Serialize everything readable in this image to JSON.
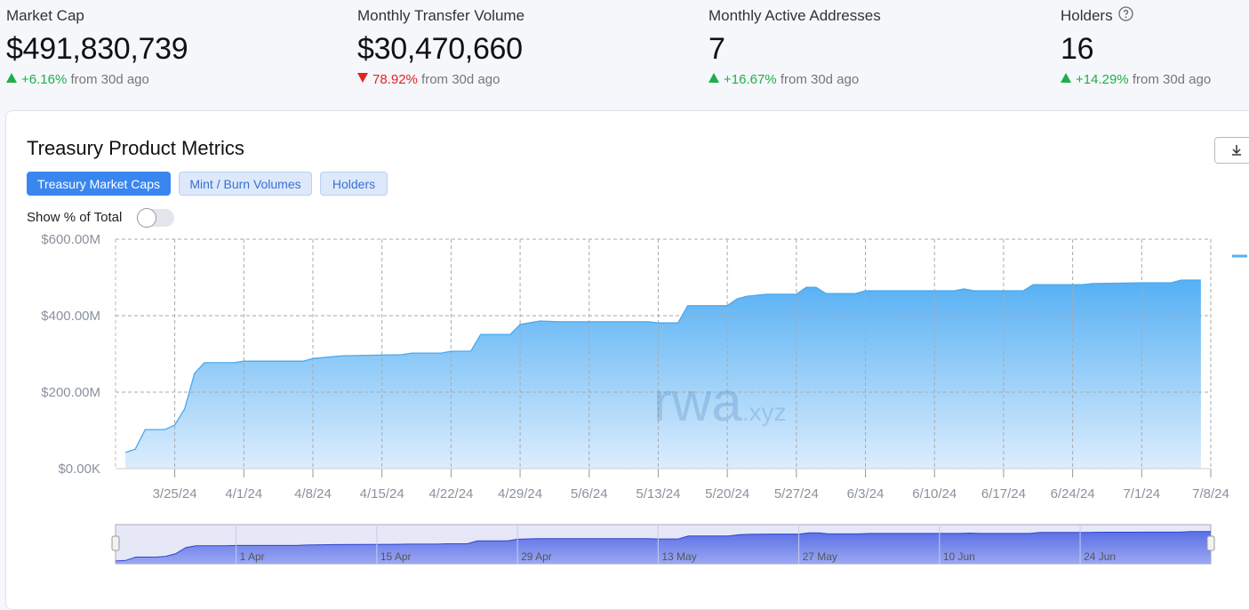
{
  "stats": [
    {
      "label": "Market Cap",
      "value": "$491,830,739",
      "change": "+6.16%",
      "direction": "up",
      "period": "from 30d ago"
    },
    {
      "label": "Monthly Transfer Volume",
      "value": "$30,470,660",
      "change": "78.92%",
      "direction": "down",
      "period": "from 30d ago"
    },
    {
      "label": "Monthly Active Addresses",
      "value": "7",
      "change": "+16.67%",
      "direction": "up",
      "period": "from 30d ago"
    },
    {
      "label": "Holders",
      "value": "16",
      "change": "+14.29%",
      "direction": "up",
      "period": "from 30d ago"
    }
  ],
  "panel": {
    "title": "Treasury Product Metrics",
    "tabs": [
      "Treasury Market Caps",
      "Mint / Burn Volumes",
      "Holders"
    ],
    "active_tab": 0,
    "toggle_label": "Show % of Total",
    "watermark": "rwa",
    "watermark_suffix": ".xyz"
  },
  "chart_data": {
    "type": "area",
    "color": "#4aa8ee",
    "grid": true,
    "x": [
      "2024-03-20",
      "2024-03-21",
      "2024-03-22",
      "2024-03-24",
      "2024-03-25",
      "2024-03-26",
      "2024-03-27",
      "2024-03-28",
      "2024-03-31",
      "2024-04-01",
      "2024-04-07",
      "2024-04-08",
      "2024-04-11",
      "2024-04-17",
      "2024-04-18",
      "2024-04-21",
      "2024-04-22",
      "2024-04-24",
      "2024-04-25",
      "2024-04-28",
      "2024-04-29",
      "2024-05-01",
      "2024-05-03",
      "2024-05-12",
      "2024-05-13",
      "2024-05-15",
      "2024-05-16",
      "2024-05-20",
      "2024-05-21",
      "2024-05-22",
      "2024-05-24",
      "2024-05-27",
      "2024-05-28",
      "2024-05-29",
      "2024-05-30",
      "2024-06-02",
      "2024-06-03",
      "2024-06-12",
      "2024-06-13",
      "2024-06-14",
      "2024-06-19",
      "2024-06-20",
      "2024-06-25",
      "2024-06-26",
      "2024-07-01",
      "2024-07-04",
      "2024-07-05",
      "2024-07-07"
    ],
    "values": [
      42,
      51,
      102,
      102,
      114,
      156,
      249,
      277,
      277,
      281,
      281,
      288,
      295,
      298,
      302,
      302,
      307,
      307,
      351,
      351,
      377,
      386,
      384,
      384,
      381,
      381,
      426,
      426,
      444,
      451,
      456,
      456,
      474,
      474,
      458,
      458,
      465,
      465,
      470,
      465,
      465,
      481,
      481,
      484,
      486,
      486,
      493,
      493
    ],
    "xlim": [
      "2024-03-19",
      "2024-07-08"
    ],
    "xticks": [
      {
        "value": "2024-03-25",
        "label": "3/25/24"
      },
      {
        "value": "2024-04-01",
        "label": "4/1/24"
      },
      {
        "value": "2024-04-08",
        "label": "4/8/24"
      },
      {
        "value": "2024-04-15",
        "label": "4/15/24"
      },
      {
        "value": "2024-04-22",
        "label": "4/22/24"
      },
      {
        "value": "2024-04-29",
        "label": "4/29/24"
      },
      {
        "value": "2024-05-06",
        "label": "5/6/24"
      },
      {
        "value": "2024-05-13",
        "label": "5/13/24"
      },
      {
        "value": "2024-05-20",
        "label": "5/20/24"
      },
      {
        "value": "2024-05-27",
        "label": "5/27/24"
      },
      {
        "value": "2024-06-03",
        "label": "6/3/24"
      },
      {
        "value": "2024-06-10",
        "label": "6/10/24"
      },
      {
        "value": "2024-06-17",
        "label": "6/17/24"
      },
      {
        "value": "2024-06-24",
        "label": "6/24/24"
      },
      {
        "value": "2024-07-01",
        "label": "7/1/24"
      },
      {
        "value": "2024-07-08",
        "label": "7/8/24"
      }
    ],
    "ylim": [
      0,
      600
    ],
    "yticks": [
      {
        "value": 0,
        "label": "$0.00K"
      },
      {
        "value": 200,
        "label": "$200.00M"
      },
      {
        "value": 400,
        "label": "$400.00M"
      },
      {
        "value": 600,
        "label": "$600.00M"
      }
    ],
    "navigator": {
      "xlim": [
        "2024-03-20",
        "2024-07-07"
      ],
      "xticks": [
        {
          "value": "2024-04-01",
          "label": "1 Apr"
        },
        {
          "value": "2024-04-15",
          "label": "15 Apr"
        },
        {
          "value": "2024-04-29",
          "label": "29 Apr"
        },
        {
          "value": "2024-05-13",
          "label": "13 May"
        },
        {
          "value": "2024-05-27",
          "label": "27 May"
        },
        {
          "value": "2024-06-10",
          "label": "10 Jun"
        },
        {
          "value": "2024-06-24",
          "label": "24 Jun"
        }
      ],
      "color": "#5b6fe6"
    }
  }
}
